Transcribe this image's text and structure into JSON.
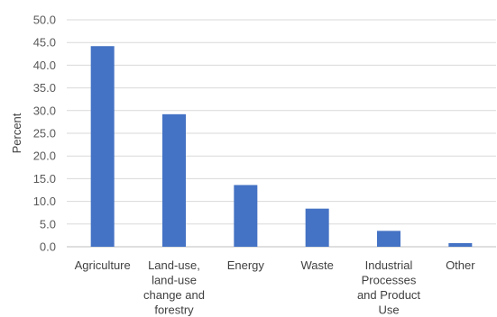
{
  "chart_data": {
    "type": "bar",
    "categories": [
      "Agriculture",
      "Land-use, land-use change and forestry",
      "Energy",
      "Waste",
      "Industrial Processes and Product Use",
      "Other"
    ],
    "category_lines": [
      [
        "Agriculture"
      ],
      [
        "Land-use,",
        "land-use",
        "change and",
        "forestry"
      ],
      [
        "Energy"
      ],
      [
        "Waste"
      ],
      [
        "Industrial",
        "Processes",
        "and Product",
        "Use"
      ],
      [
        "Other"
      ]
    ],
    "values": [
      44.2,
      29.2,
      13.6,
      8.4,
      3.5,
      0.8
    ],
    "title": "",
    "xlabel": "",
    "ylabel": "Percent",
    "ylim": [
      0,
      50
    ],
    "yticks": [
      "0.0",
      "5.0",
      "10.0",
      "15.0",
      "20.0",
      "25.0",
      "30.0",
      "35.0",
      "40.0",
      "45.0",
      "50.0"
    ],
    "grid": true,
    "legend": "none",
    "bar_color": "#4472c4"
  }
}
